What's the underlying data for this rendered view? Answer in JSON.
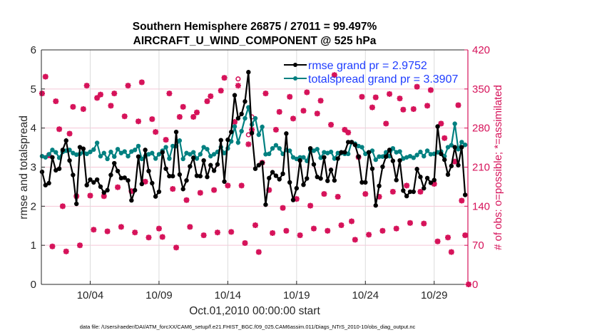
{
  "chart_data": {
    "type": "line",
    "title": [
      "Southern Hemisphere 26875 / 27011 = 99.497%",
      "AIRCRAFT_U_WIND_COMPONENT @ 525 hPa"
    ],
    "xlabel": "Oct.01,2010 00:00:00 start",
    "ylabel": "rmse and totalspread",
    "ylabel_right": "# of obs: o=possible; *=assimilated",
    "footer": "data file: /Users/raeder/DAI/ATM_forcXX/CAM6_setup/f.e21.FHIST_BGC.f09_025.CAM6assim.011/Diags_NTrS_2010-10/obs_diag_output.nc",
    "x_units": "days since Oct.01,2010 00:00:00",
    "x_start_day": -0.5,
    "x_step_day": 0.25,
    "xlim": [
      -0.55,
      30.45
    ],
    "ylim": [
      0,
      6
    ],
    "ylim_right": [
      0,
      420
    ],
    "x_ticks": [
      {
        "day": 3,
        "label": "10/04"
      },
      {
        "day": 8,
        "label": "10/09"
      },
      {
        "day": 13,
        "label": "10/14"
      },
      {
        "day": 18,
        "label": "10/19"
      },
      {
        "day": 23,
        "label": "10/24"
      },
      {
        "day": 28,
        "label": "10/29"
      }
    ],
    "y_ticks": [
      "0",
      "1",
      "2",
      "3",
      "4",
      "5",
      "6"
    ],
    "y_ticks_right": [
      "0",
      "70",
      "140",
      "210",
      "280",
      "350",
      "420"
    ],
    "grid": true,
    "legend_position": "top-right",
    "colors": {
      "rmse": "#000000",
      "totalspread": "#008080",
      "obs": "#d6135a",
      "legend_text": "#1f3dff"
    },
    "series": [
      {
        "name": "rmse grand pr = 2.9752",
        "key": "rmse",
        "values": [
          2.88,
          2.54,
          2.59,
          3.25,
          2.92,
          2.96,
          3.44,
          3.68,
          3.17,
          2.8,
          2.06,
          3.51,
          3.47,
          2.54,
          2.68,
          2.61,
          2.68,
          2.5,
          2.35,
          2.41,
          2.8,
          3.1,
          2.9,
          2.72,
          2.73,
          2.66,
          2.15,
          2.41,
          3.27,
          2.57,
          3.44,
          2.9,
          2.59,
          2.25,
          2.37,
          3.38,
          2.96,
          2.77,
          2.77,
          3.9,
          2.81,
          2.44,
          2.66,
          3.02,
          3.24,
          2.78,
          2.77,
          3.17,
          2.75,
          3.05,
          2.91,
          3.07,
          3.69,
          2.63,
          3.7,
          3.9,
          4.84,
          4.25,
          4.36,
          4.68,
          5.43,
          3.87,
          2.96,
          3.05,
          3.11,
          2.04,
          2.72,
          2.87,
          2.78,
          2.69,
          2.83,
          3.86,
          2.61,
          2.16,
          2.46,
          3.17,
          2.55,
          2.71,
          3.48,
          3.07,
          2.75,
          2.71,
          3.25,
          2.65,
          2.93,
          2.66,
          3.22,
          3.38,
          3.38,
          3.64,
          3.64,
          3.57,
          3.27,
          2.61,
          2.61,
          3.38,
          2.96,
          2.02,
          2.52,
          3.01,
          3.27,
          3.44,
          3.16,
          2.67,
          3.17,
          2.4,
          2.26,
          2.37,
          2.37,
          2.95,
          2.75,
          2.46,
          2.72,
          2.6,
          2.67,
          4.04,
          3.34,
          3.19,
          2.81,
          3.03,
          3.51,
          3.05,
          3.51,
          2.29
        ]
      },
      {
        "name": "totalspread grand pr = 3.3907",
        "key": "totalspread",
        "values": [
          3.28,
          3.25,
          3.33,
          3.44,
          3.38,
          3.24,
          3.39,
          3.42,
          3.44,
          3.36,
          3.32,
          3.34,
          3.38,
          3.34,
          3.39,
          3.45,
          3.62,
          3.28,
          3.36,
          3.21,
          3.39,
          3.27,
          3.46,
          3.36,
          3.4,
          3.28,
          3.4,
          3.44,
          3.54,
          3.21,
          3.28,
          3.33,
          3.36,
          3.22,
          3.33,
          3.42,
          3.51,
          3.22,
          3.54,
          3.54,
          3.68,
          3.21,
          3.36,
          3.33,
          3.38,
          3.22,
          3.33,
          3.51,
          3.46,
          3.28,
          3.33,
          3.39,
          3.51,
          3.36,
          3.48,
          3.66,
          4.04,
          3.63,
          3.92,
          4.25,
          4.53,
          4.09,
          4.25,
          3.83,
          4.03,
          3.33,
          3.34,
          3.48,
          3.56,
          3.48,
          3.34,
          3.44,
          3.42,
          3.25,
          3.21,
          3.25,
          3.25,
          3.16,
          3.44,
          3.42,
          3.46,
          3.24,
          3.38,
          3.36,
          3.39,
          3.22,
          3.36,
          3.36,
          3.34,
          3.34,
          3.64,
          3.6,
          3.54,
          3.51,
          3.34,
          3.38,
          3.42,
          3.19,
          3.27,
          3.27,
          3.38,
          3.28,
          3.48,
          3.38,
          3.4,
          3.22,
          3.25,
          3.28,
          3.24,
          3.31,
          3.39,
          3.28,
          3.42,
          3.33,
          3.34,
          3.38,
          3.4,
          3.28,
          3.51,
          3.56,
          4.11,
          3.46,
          3.64,
          3.57
        ]
      },
      {
        "name": "obs possible",
        "key": "possible",
        "axis": "right",
        "values": [
          342,
          372,
          231,
          68,
          328,
          278,
          140,
          59,
          270,
          318,
          158,
          70,
          314,
          356,
          159,
          98,
          334,
          340,
          158,
          95,
          320,
          342,
          174,
          103,
          301,
          356,
          167,
          93,
          292,
          362,
          184,
          84,
          296,
          273,
          100,
          85,
          259,
          342,
          171,
          66,
          300,
          318,
          151,
          103,
          300,
          308,
          164,
          88,
          328,
          337,
          169,
          93,
          347,
          370,
          177,
          94,
          291,
          368,
          177,
          74,
          268,
          300,
          106,
          58,
          218,
          342,
          169,
          92,
          277,
          309,
          137,
          96,
          336,
          297,
          153,
          88,
          311,
          344,
          141,
          100,
          306,
          329,
          162,
          96,
          286,
          375,
          157,
          106,
          277,
          272,
          113,
          80,
          228,
          336,
          162,
          89,
          317,
          335,
          157,
          96,
          288,
          341,
          166,
          100,
          333,
          313,
          177,
          110,
          314,
          354,
          166,
          109,
          320,
          348,
          180,
          77,
          288,
          262,
          84,
          58,
          220,
          321,
          150,
          88,
          0
        ]
      },
      {
        "name": "obs assimilated",
        "key": "assimilated",
        "axis": "right",
        "values": [
          342,
          372,
          231,
          68,
          328,
          278,
          140,
          59,
          270,
          318,
          158,
          70,
          314,
          356,
          159,
          98,
          334,
          340,
          158,
          95,
          320,
          342,
          174,
          103,
          301,
          356,
          167,
          93,
          292,
          362,
          184,
          84,
          296,
          273,
          100,
          85,
          259,
          342,
          171,
          66,
          300,
          318,
          151,
          103,
          300,
          308,
          164,
          88,
          328,
          337,
          169,
          93,
          347,
          370,
          177,
          94,
          291,
          356,
          177,
          74,
          251,
          277,
          106,
          58,
          218,
          342,
          169,
          92,
          277,
          309,
          137,
          96,
          336,
          297,
          153,
          88,
          311,
          344,
          141,
          100,
          306,
          329,
          162,
          96,
          286,
          375,
          157,
          106,
          277,
          272,
          113,
          80,
          228,
          336,
          162,
          89,
          317,
          335,
          157,
          96,
          288,
          341,
          166,
          100,
          333,
          313,
          177,
          110,
          314,
          354,
          166,
          109,
          320,
          348,
          180,
          77,
          288,
          262,
          84,
          58,
          220,
          321,
          150,
          88,
          0
        ]
      }
    ]
  }
}
